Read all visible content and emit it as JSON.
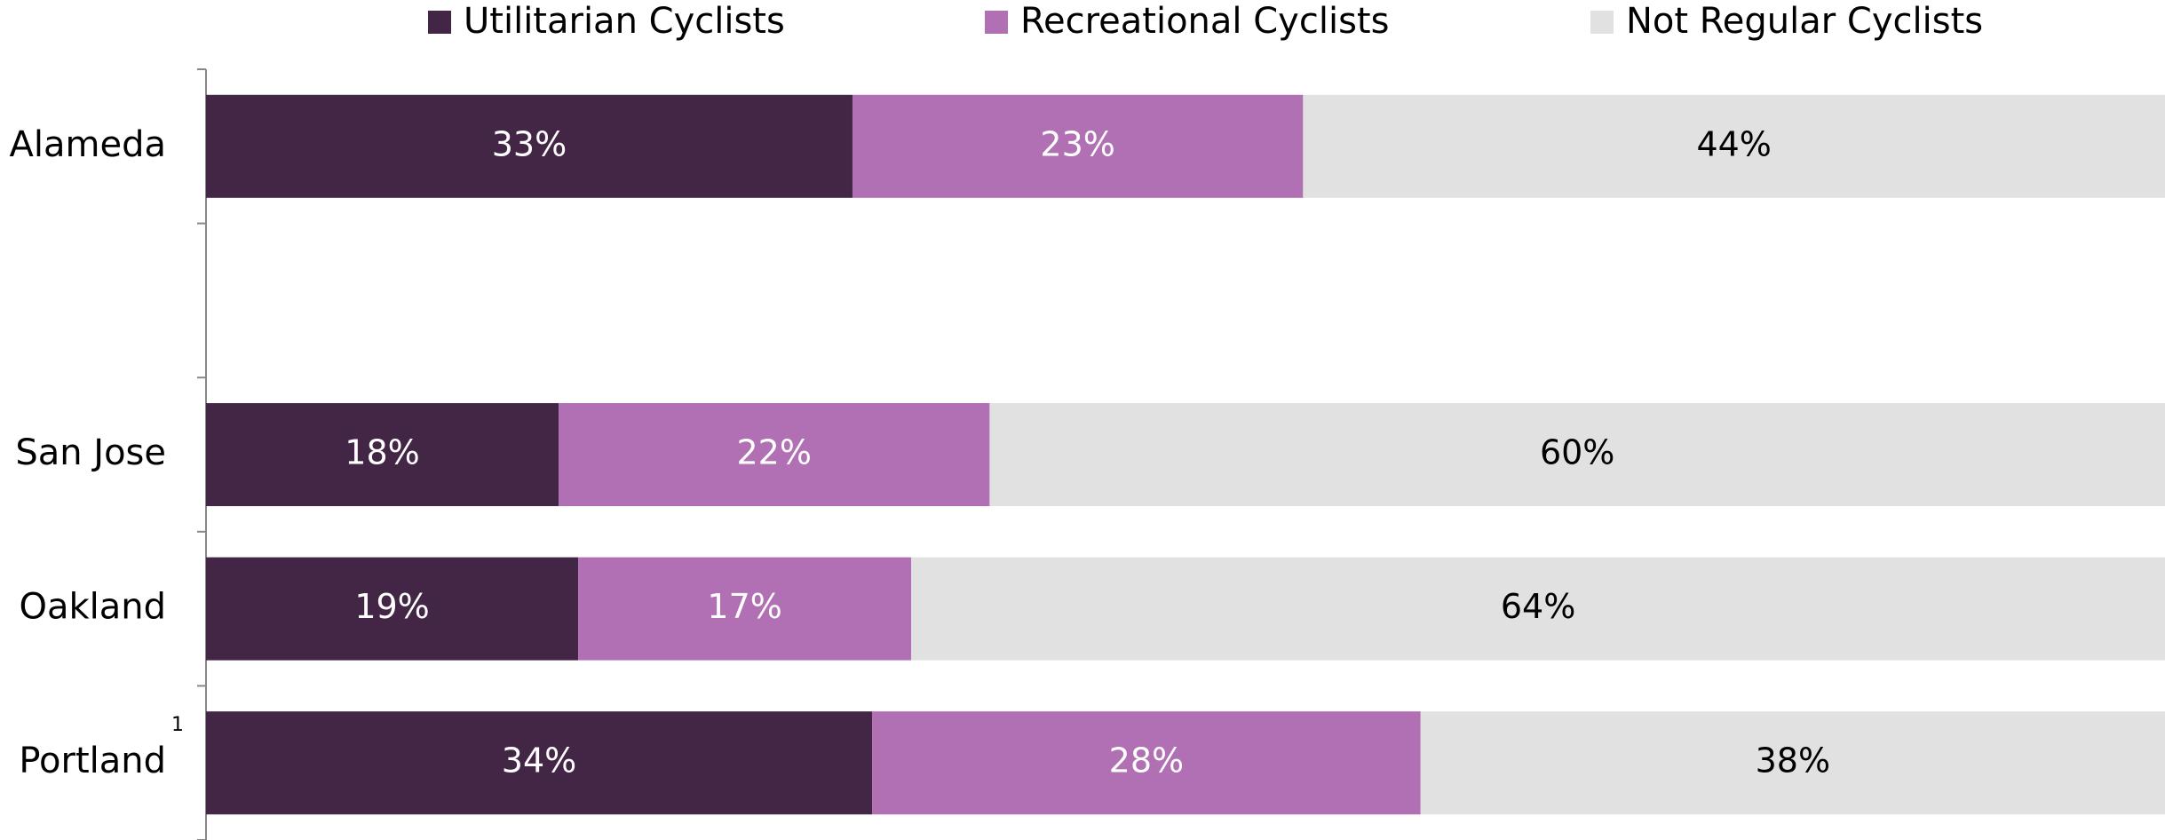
{
  "chart_data": {
    "type": "stacked_bar_horizontal",
    "categories": [
      "Alameda",
      null,
      "San Jose",
      "Oakland",
      "Portland"
    ],
    "annotation": "1",
    "xlim": [
      0,
      100
    ],
    "series": [
      {
        "name": "Utilitarian Cyclists",
        "color": "#432645",
        "label_color": "#ffffff",
        "values": [
          33,
          null,
          18,
          19,
          34
        ],
        "value_labels": [
          "33%",
          null,
          "18%",
          "19%",
          "34%"
        ]
      },
      {
        "name": "Recreational Cyclists",
        "color": "#b070b3",
        "label_color": "#ffffff",
        "values": [
          23,
          null,
          22,
          17,
          28
        ],
        "value_labels": [
          "23%",
          null,
          "22%",
          "17%",
          "28%"
        ]
      },
      {
        "name": "Not Regular Cyclists",
        "color": "#e1e1e1",
        "label_color": "#000000",
        "values": [
          44,
          null,
          60,
          64,
          38
        ],
        "value_labels": [
          "44%",
          null,
          "60%",
          "64%",
          "38%"
        ]
      }
    ]
  }
}
